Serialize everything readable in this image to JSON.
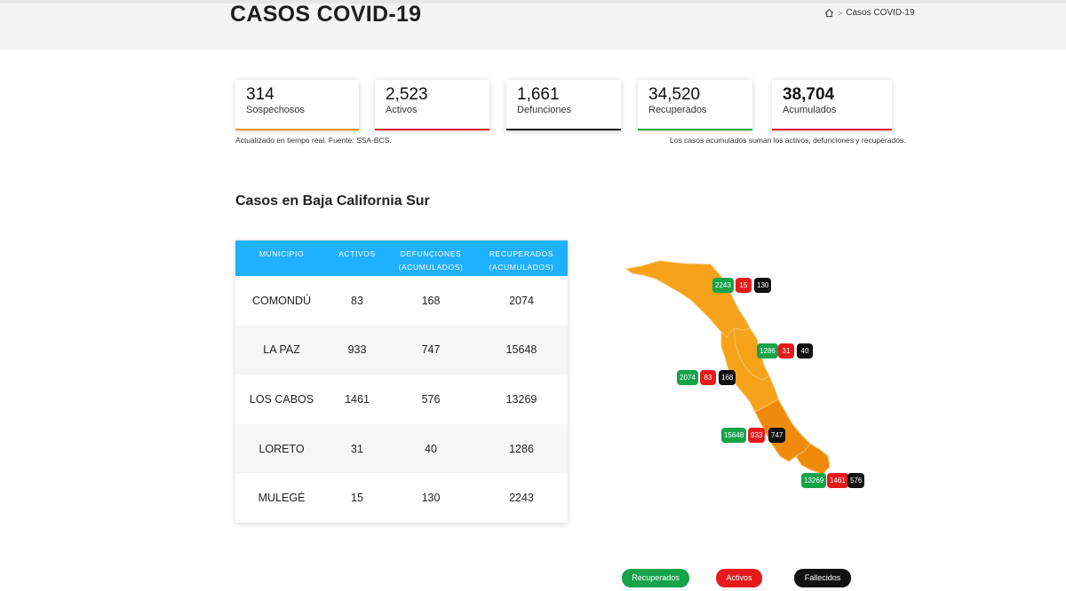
{
  "header": {
    "title": "CASOS COVID-19",
    "breadcrumb_current": "Casos COVID-19"
  },
  "stats": [
    {
      "value": "314",
      "label": "Sospechosos",
      "color": "#f7931e"
    },
    {
      "value": "2,523",
      "label": "Activos",
      "color": "#e51b1b"
    },
    {
      "value": "1,661",
      "label": "Defunciones",
      "color": "#111111"
    },
    {
      "value": "34,520",
      "label": "Recuperados",
      "color": "#16a34a"
    },
    {
      "value": "38,704",
      "label": "Acumulados",
      "color": "#e51b1b"
    }
  ],
  "notes": {
    "left": "Actualizado en tiempo real. Fuente: SSA-BCS.",
    "right": "Los casos acumulados suman los activos, defunciones y recuperados."
  },
  "section_title": "Casos en Baja California Sur",
  "table": {
    "headers": [
      {
        "line1": "MUNICIPIO",
        "line2": ""
      },
      {
        "line1": "ACTIVOS",
        "line2": ""
      },
      {
        "line1": "DEFUNCIONES",
        "line2": "(ACUMULADOS)"
      },
      {
        "line1": "RECUPERADOS",
        "line2": "(ACUMULADOS)"
      }
    ],
    "rows": [
      {
        "municipio": "COMONDÚ",
        "activos": "83",
        "defunciones": "168",
        "recuperados": "2074"
      },
      {
        "municipio": "LA PAZ",
        "activos": "933",
        "defunciones": "747",
        "recuperados": "15648"
      },
      {
        "municipio": "LOS CABOS",
        "activos": "1461",
        "defunciones": "576",
        "recuperados": "13269"
      },
      {
        "municipio": "LORETO",
        "activos": "31",
        "defunciones": "40",
        "recuperados": "1286"
      },
      {
        "municipio": "MULEGÉ",
        "activos": "15",
        "defunciones": "130",
        "recuperados": "2243"
      }
    ]
  },
  "map_badges": {
    "mulege": {
      "recuperados": "2243",
      "activos": "15",
      "fallecidos": "130"
    },
    "loreto": {
      "recuperados": "1286",
      "activos": "31",
      "fallecidos": "40"
    },
    "comondu": {
      "recuperados": "2074",
      "activos": "83",
      "fallecidos": "168"
    },
    "lapaz": {
      "recuperados": "15648",
      "activos": "933",
      "fallecidos": "747"
    },
    "loscabos": {
      "recuperados": "13269",
      "activos": "1461",
      "fallecidos": "576"
    }
  },
  "legend": {
    "recuperados": "Recuperados",
    "activos": "Activos",
    "fallecidos": "Fallecidos"
  },
  "colors": {
    "table_header": "#1fb0ff",
    "map_orange": "#f7a21b",
    "map_dark_orange": "#f08a0c"
  }
}
